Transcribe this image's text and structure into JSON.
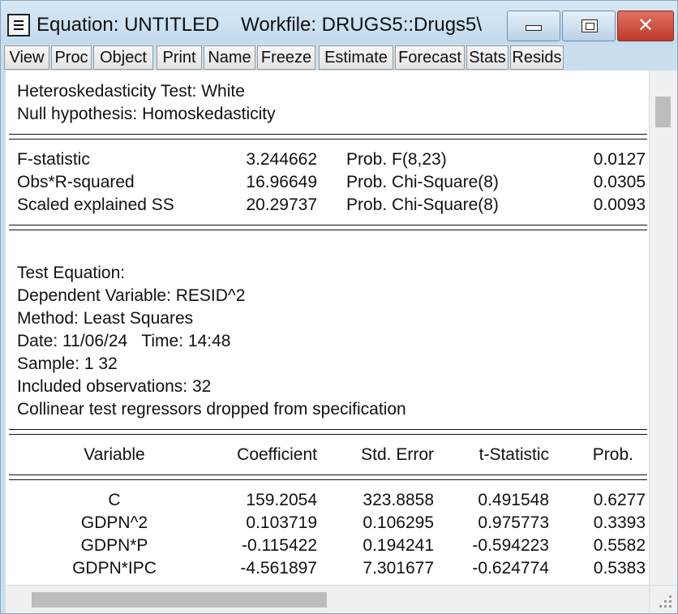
{
  "window": {
    "title": "Equation: UNTITLED    Workfile: DRUGS5::Drugs5\\",
    "close_glyph": "✕"
  },
  "toolbar": [
    "View",
    "Proc",
    "Object",
    "Print",
    "Name",
    "Freeze",
    "Estimate",
    "Forecast",
    "Stats",
    "Resids"
  ],
  "header": {
    "line1": "Heteroskedasticity Test: White",
    "line2": "Null hypothesis: Homoskedasticity"
  },
  "stats": [
    {
      "label": "F-statistic",
      "value": "3.244662",
      "prob_label": "Prob. F(8,23)",
      "prob": "0.0127"
    },
    {
      "label": "Obs*R-squared",
      "value": "16.96649",
      "prob_label": "Prob. Chi-Square(8)",
      "prob": "0.0305"
    },
    {
      "label": "Scaled explained SS",
      "value": "20.29737",
      "prob_label": "Prob. Chi-Square(8)",
      "prob": "0.0093"
    }
  ],
  "test_equation": [
    "Test Equation:",
    "Dependent Variable: RESID^2",
    "Method: Least Squares",
    "Date: 11/06/24   Time: 14:48",
    "Sample: 1 32",
    "Included observations: 32",
    "Collinear test regressors dropped from specification"
  ],
  "table": {
    "headers": [
      "Variable",
      "Coefficient",
      "Std. Error",
      "t-Statistic",
      "Prob."
    ],
    "rows": [
      [
        "C",
        "159.2054",
        "323.8858",
        "0.491548",
        "0.6277"
      ],
      [
        "GDPN^2",
        "0.103719",
        "0.106295",
        "0.975773",
        "0.3393"
      ],
      [
        "GDPN*P",
        "-0.115422",
        "0.194241",
        "-0.594223",
        "0.5582"
      ],
      [
        "GDPN*IPC",
        "-4.561897",
        "7.301677",
        "-0.624774",
        "0.5383"
      ]
    ]
  }
}
